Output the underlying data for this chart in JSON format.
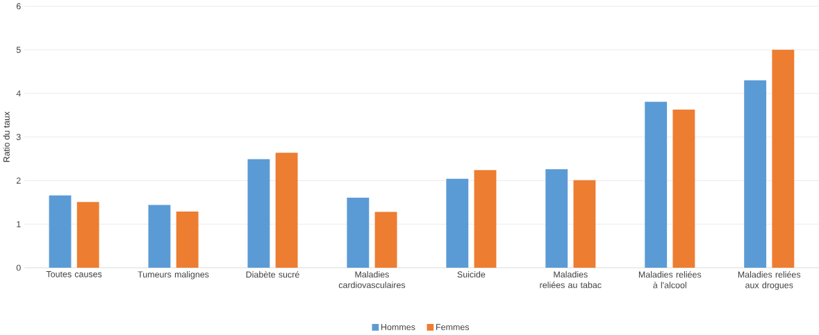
{
  "chart_data": {
    "type": "bar",
    "ylabel": "Ratio du taux",
    "categories": [
      "Toutes causes",
      "Tumeurs malignes",
      "Diabète sucré",
      "Maladies cardiovasculaires",
      "Suicide",
      "Maladies reliées au tabac",
      "Maladies reliées à l'alcool",
      "Maladies reliées aux drogues"
    ],
    "series": [
      {
        "name": "Hommes",
        "color": "#5b9bd5",
        "values": [
          1.66,
          1.44,
          2.49,
          1.61,
          2.04,
          2.26,
          3.81,
          4.3
        ]
      },
      {
        "name": "Femmes",
        "color": "#ed7d31",
        "values": [
          1.51,
          1.29,
          2.64,
          1.28,
          2.24,
          2.01,
          3.63,
          5.0
        ]
      }
    ],
    "ylim": [
      0,
      6
    ],
    "yticks": [
      0,
      1,
      2,
      3,
      4,
      5,
      6
    ],
    "grid": "y",
    "legend": "bottom"
  }
}
